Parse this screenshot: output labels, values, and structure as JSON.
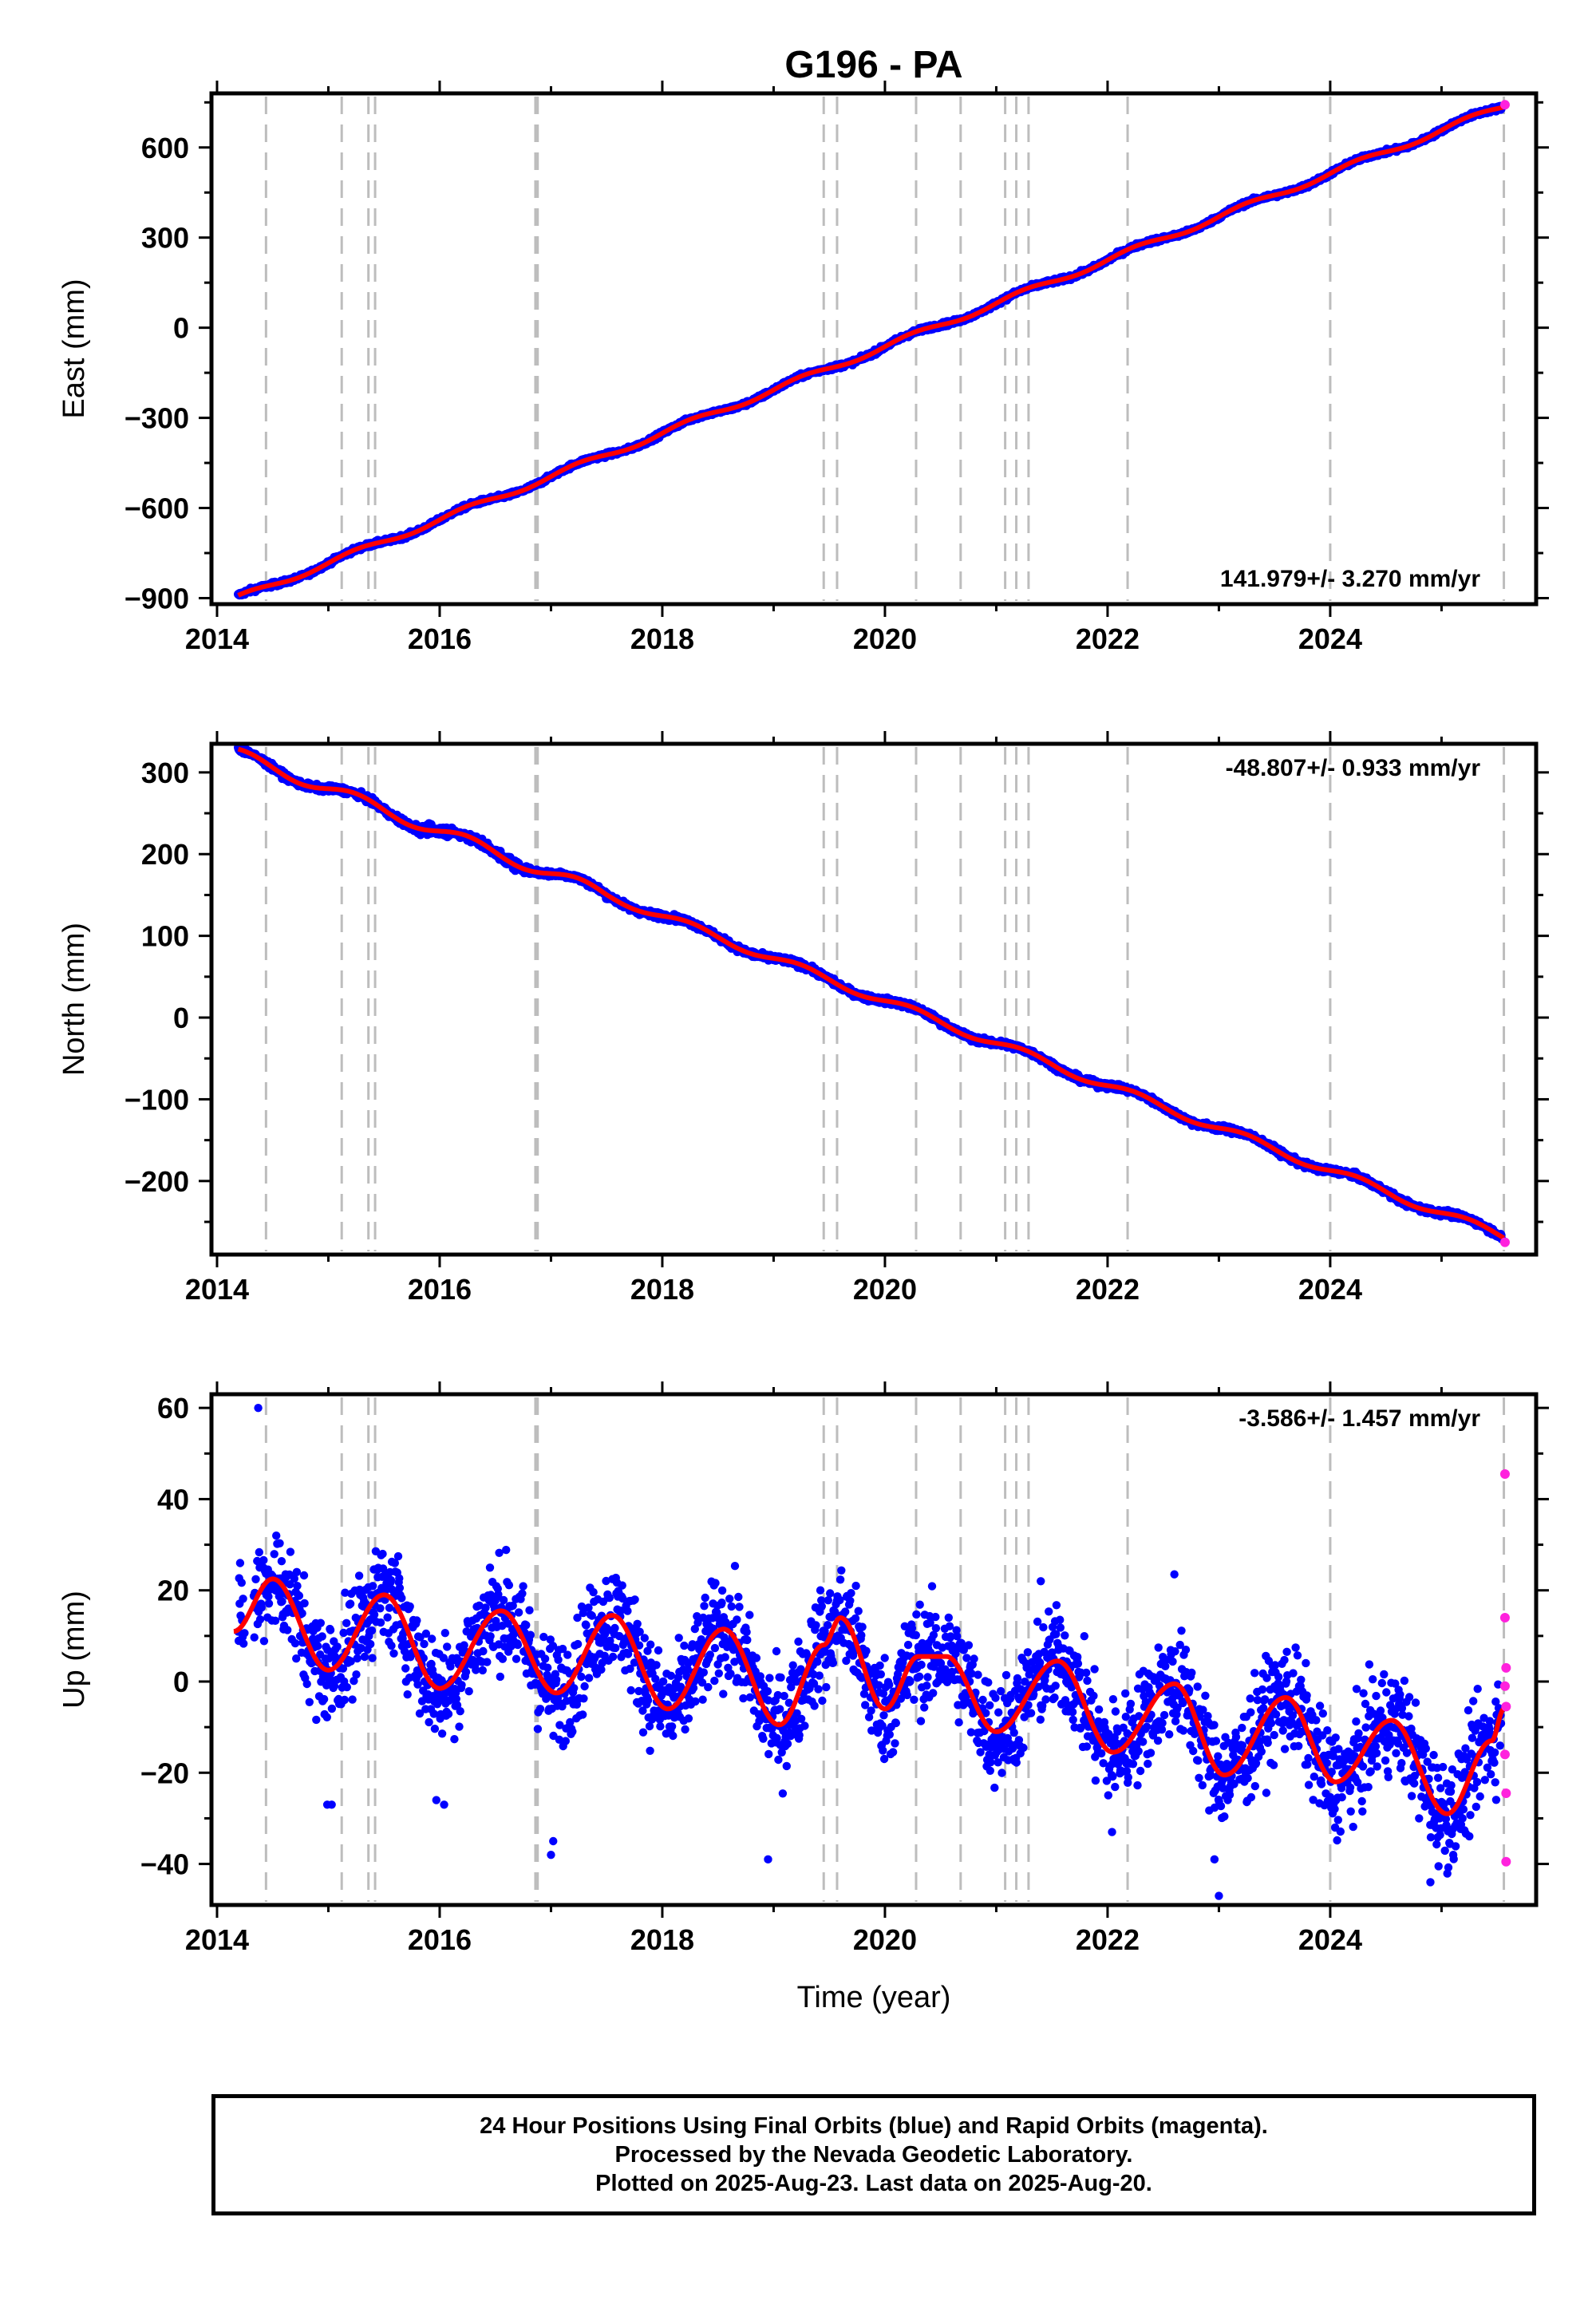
{
  "title": "G196 - PA",
  "xlabel": "Time (year)",
  "colors": {
    "final": "#0000ff",
    "rapid": "#ff22dd",
    "model": "#ff0000",
    "events": "#bdbdbd",
    "frame": "#000000"
  },
  "footer": {
    "line1": "24 Hour Positions Using Final Orbits (blue) and Rapid Orbits (magenta).",
    "line2": "Processed by the Nevada Geodetic Laboratory.",
    "line3": "Plotted on 2025-Aug-23. Last data on 2025-Aug-20."
  },
  "chart_data": [
    {
      "type": "scatter",
      "panel": "east",
      "ylabel": "East (mm)",
      "xlim": [
        2013.95,
        2025.85
      ],
      "ylim": [
        -920,
        780
      ],
      "xticks": [
        2014,
        2016,
        2018,
        2020,
        2022,
        2024
      ],
      "yticks": [
        -900,
        -600,
        -300,
        0,
        300,
        600
      ],
      "rate_label": "141.979+/- 3.270 mm/yr",
      "rate_position": "bottom-right",
      "x_start": 2014.19,
      "x_end": 2025.56,
      "y_start": -900,
      "y_end": 738,
      "rate": 141.979,
      "series": [
        {
          "role": "final",
          "x_range": [
            2014.19,
            2025.54
          ]
        },
        {
          "role": "rapid",
          "points": [
            [
              2025.57,
              742
            ]
          ]
        },
        {
          "role": "model"
        }
      ]
    },
    {
      "type": "scatter",
      "panel": "north",
      "ylabel": "North (mm)",
      "xlim": [
        2013.95,
        2025.85
      ],
      "ylim": [
        -290,
        335
      ],
      "xticks": [
        2014,
        2016,
        2018,
        2020,
        2022,
        2024
      ],
      "yticks": [
        -200,
        -100,
        0,
        100,
        200,
        300
      ],
      "rate_label": "-48.807+/- 0.933 mm/yr",
      "rate_position": "top-right",
      "x_start": 2014.19,
      "x_end": 2025.56,
      "y_start": 322,
      "y_end": -268,
      "rate": -48.807,
      "series": [
        {
          "role": "final",
          "x_range": [
            2014.19,
            2025.54
          ]
        },
        {
          "role": "rapid",
          "points": [
            [
              2025.57,
              -275
            ]
          ]
        },
        {
          "role": "model"
        }
      ]
    },
    {
      "type": "scatter",
      "panel": "up",
      "ylabel": "Up (mm)",
      "xlim": [
        2013.95,
        2025.85
      ],
      "ylim": [
        -49,
        63
      ],
      "xticks": [
        2014,
        2016,
        2018,
        2020,
        2022,
        2024
      ],
      "yticks": [
        -40,
        -20,
        0,
        20,
        40,
        60
      ],
      "rate_label": "-3.586+/- 1.457 mm/yr",
      "rate_position": "top-right",
      "rate": -3.586,
      "seasonal_amplitude": 10,
      "scatter_spread": 8,
      "series": [
        {
          "role": "final",
          "x_range": [
            2014.19,
            2025.54
          ]
        },
        {
          "role": "rapid",
          "points": [
            [
              2025.57,
              45.5
            ],
            [
              2025.57,
              14
            ],
            [
              2025.58,
              3
            ],
            [
              2025.57,
              -1
            ],
            [
              2025.58,
              -5.5
            ],
            [
              2025.57,
              -16
            ],
            [
              2025.58,
              -24.5
            ],
            [
              2025.58,
              -39.5
            ]
          ]
        },
        {
          "role": "model",
          "knots": [
            [
              2014.15,
              11
            ],
            [
              2014.5,
              22.5
            ],
            [
              2015.0,
              2.5
            ],
            [
              2015.5,
              19
            ],
            [
              2016.0,
              -1.5
            ],
            [
              2016.55,
              15.5
            ],
            [
              2017.05,
              -2.5
            ],
            [
              2017.55,
              14.5
            ],
            [
              2018.05,
              -6
            ],
            [
              2018.55,
              11.5
            ],
            [
              2019.05,
              -9.5
            ],
            [
              2019.45,
              8
            ],
            [
              2019.6,
              14
            ],
            [
              2020.0,
              -6
            ],
            [
              2020.3,
              5.5
            ],
            [
              2020.55,
              5.5
            ],
            [
              2021.0,
              -11
            ],
            [
              2021.55,
              4.5
            ],
            [
              2022.05,
              -15.5
            ],
            [
              2022.6,
              -0.5
            ],
            [
              2023.05,
              -20.5
            ],
            [
              2023.6,
              -3.5
            ],
            [
              2024.05,
              -22
            ],
            [
              2024.55,
              -8.5
            ],
            [
              2025.05,
              -29
            ],
            [
              2025.45,
              -13
            ],
            [
              2025.56,
              -6
            ]
          ]
        }
      ]
    }
  ],
  "event_lines": [
    2014.44,
    2015.12,
    2015.36,
    2015.42,
    2016.86,
    2016.88,
    2019.45,
    2019.57,
    2020.28,
    2020.68,
    2021.08,
    2021.18,
    2021.29,
    2022.18,
    2024.0,
    2025.56
  ]
}
